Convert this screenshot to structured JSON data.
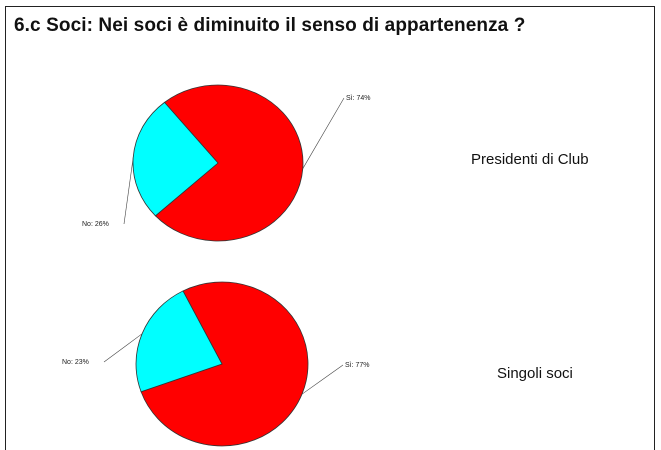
{
  "title": "6.c Soci: Nei soci è diminuito il senso di appartenenza ?",
  "chart_data": [
    {
      "type": "pie",
      "group_label": "Presidenti di Club",
      "slices": [
        {
          "label": "Sì: 74%",
          "category": "Sì",
          "value": 74,
          "color": "#ff0000"
        },
        {
          "label": "No: 26%",
          "category": "No",
          "value": 26,
          "color": "#00ffff"
        }
      ]
    },
    {
      "type": "pie",
      "group_label": "Singoli soci",
      "slices": [
        {
          "label": "Sì: 77%",
          "category": "Sì",
          "value": 77,
          "color": "#ff0000"
        },
        {
          "label": "No: 23%",
          "category": "No",
          "value": 23,
          "color": "#00ffff"
        }
      ]
    }
  ]
}
